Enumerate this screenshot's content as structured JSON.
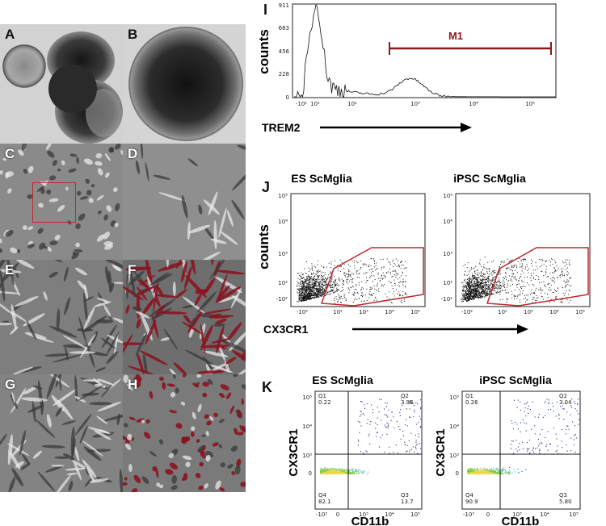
{
  "labels": {
    "A": "A",
    "B": "B",
    "C": "C",
    "D": "D",
    "E": "E",
    "F": "F",
    "G": "G",
    "H": "H",
    "I": "I",
    "J": "J",
    "K": "K"
  },
  "panel_I": {
    "ylabel": "counts",
    "xlabel": "TREM2",
    "gate_label": "M1",
    "y_ticks": [
      "911",
      "683",
      "456",
      "228",
      "0"
    ],
    "x_ticks": [
      "-10¹",
      "10¹",
      "10²",
      "10³",
      "10⁴",
      "10⁵"
    ]
  },
  "panel_J": {
    "ylabel": "counts",
    "xlabel": "CX3CR1",
    "plots": [
      {
        "title": "ES ScMglia"
      },
      {
        "title": "iPSC ScMglia"
      }
    ],
    "y_ticks": [
      "10⁵",
      "10⁴",
      "10³",
      "10²",
      "-10²"
    ],
    "x_ticks": [
      "-10²",
      "10²",
      "10³",
      "10⁴",
      "10⁵"
    ]
  },
  "panel_K": {
    "ylabel": "CX3CR1",
    "xlabel": "CD11b",
    "plots": [
      {
        "title": "ES ScMglia",
        "q1_label": "Q1",
        "q1_value": "0.22",
        "q2_label": "Q2",
        "q2_value": "3.96",
        "q3_label": "Q3",
        "q3_value": "13.7",
        "q4_label": "Q4",
        "q4_value": "82.1"
      },
      {
        "title": "iPSC ScMglia",
        "q1_label": "Q1",
        "q1_value": "0.26",
        "q2_label": "Q2",
        "q2_value": "3.04",
        "q3_label": "Q3",
        "q3_value": "5.80",
        "q4_label": "Q4",
        "q4_value": "90.9"
      }
    ],
    "y_ticks": [
      "10⁵",
      "10⁴",
      "10³",
      "0"
    ],
    "x_ticks": [
      "-10³",
      "0",
      "10³",
      "10⁴",
      "10⁵"
    ]
  },
  "colors": {
    "gate_red": "#c0282d",
    "m1_maroon": "#8b1a1a",
    "density_low": "#1a2a8a",
    "density_mid": "#2bb3c0",
    "density_high": "#e8d84a"
  }
}
